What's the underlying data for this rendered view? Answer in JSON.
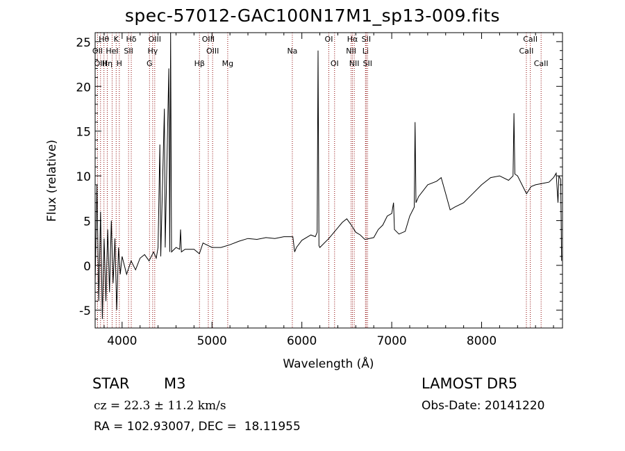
{
  "title": "spec-57012-GAC100N17M1_sp13-009.fits",
  "info": {
    "object_class": "STAR",
    "subclass": "M3",
    "survey": "LAMOST DR5",
    "cz": "cz = 22.3 ± 11.2 km/s",
    "obs_date": "Obs-Date: 20141220",
    "coords": "RA = 102.93007, DEC =  18.11955"
  },
  "colors": {
    "spectrum": "#000000",
    "line_markers": "#8b0000",
    "axes": "#000000"
  },
  "chart_data": {
    "type": "line",
    "title": "spec-57012-GAC100N17M1_sp13-009.fits",
    "xlabel": "Wavelength (Å)",
    "ylabel": "Flux (relative)",
    "xlim": [
      3700,
      8900
    ],
    "ylim": [
      -7,
      26
    ],
    "x_ticks": [
      4000,
      5000,
      6000,
      7000,
      8000
    ],
    "y_ticks": [
      -5,
      0,
      5,
      10,
      15,
      20,
      25
    ],
    "grid": false,
    "series": [
      {
        "points": [
          [
            3700,
            -2
          ],
          [
            3720,
            9
          ],
          [
            3740,
            -4
          ],
          [
            3760,
            6
          ],
          [
            3780,
            -6
          ],
          [
            3800,
            3
          ],
          [
            3820,
            -4
          ],
          [
            3840,
            4
          ],
          [
            3860,
            -3
          ],
          [
            3880,
            5
          ],
          [
            3900,
            -2
          ],
          [
            3920,
            3
          ],
          [
            3940,
            -5
          ],
          [
            3960,
            2
          ],
          [
            3980,
            -1
          ],
          [
            4000,
            1
          ],
          [
            4050,
            -1
          ],
          [
            4100,
            0.5
          ],
          [
            4150,
            -0.5
          ],
          [
            4200,
            0.8
          ],
          [
            4250,
            1.2
          ],
          [
            4300,
            0.5
          ],
          [
            4350,
            1.5
          ],
          [
            4380,
            0.8
          ],
          [
            4400,
            2
          ],
          [
            4420,
            13.5
          ],
          [
            4430,
            1
          ],
          [
            4470,
            17.5
          ],
          [
            4480,
            2
          ],
          [
            4520,
            22
          ],
          [
            4530,
            1.5
          ],
          [
            4540,
            26
          ],
          [
            4550,
            1.5
          ],
          [
            4600,
            2
          ],
          [
            4640,
            1.8
          ],
          [
            4650,
            4
          ],
          [
            4660,
            1.5
          ],
          [
            4700,
            1.8
          ],
          [
            4800,
            1.8
          ],
          [
            4860,
            1.3
          ],
          [
            4900,
            2.5
          ],
          [
            5000,
            2
          ],
          [
            5100,
            2
          ],
          [
            5200,
            2.3
          ],
          [
            5300,
            2.7
          ],
          [
            5400,
            3
          ],
          [
            5500,
            2.9
          ],
          [
            5600,
            3.1
          ],
          [
            5700,
            3
          ],
          [
            5800,
            3.2
          ],
          [
            5900,
            3.2
          ],
          [
            5920,
            1.5
          ],
          [
            5940,
            2
          ],
          [
            6000,
            2.8
          ],
          [
            6100,
            3.4
          ],
          [
            6150,
            3.2
          ],
          [
            6170,
            3.7
          ],
          [
            6180,
            24
          ],
          [
            6190,
            2.2
          ],
          [
            6200,
            2
          ],
          [
            6300,
            3
          ],
          [
            6400,
            4.2
          ],
          [
            6450,
            4.8
          ],
          [
            6500,
            5.2
          ],
          [
            6550,
            4.5
          ],
          [
            6600,
            3.7
          ],
          [
            6650,
            3.4
          ],
          [
            6700,
            2.9
          ],
          [
            6750,
            3
          ],
          [
            6800,
            3.1
          ],
          [
            6850,
            4
          ],
          [
            6900,
            4.5
          ],
          [
            6950,
            5.5
          ],
          [
            7000,
            5.8
          ],
          [
            7020,
            7
          ],
          [
            7030,
            4
          ],
          [
            7080,
            3.5
          ],
          [
            7150,
            3.8
          ],
          [
            7200,
            5.5
          ],
          [
            7250,
            6.5
          ],
          [
            7260,
            16
          ],
          [
            7270,
            7
          ],
          [
            7300,
            7.7
          ],
          [
            7400,
            9
          ],
          [
            7500,
            9.4
          ],
          [
            7550,
            9.8
          ],
          [
            7600,
            8
          ],
          [
            7650,
            6.2
          ],
          [
            7700,
            6.5
          ],
          [
            7800,
            7
          ],
          [
            7900,
            8
          ],
          [
            8000,
            9
          ],
          [
            8100,
            9.8
          ],
          [
            8200,
            10
          ],
          [
            8300,
            9.5
          ],
          [
            8350,
            10
          ],
          [
            8360,
            17
          ],
          [
            8370,
            10.2
          ],
          [
            8400,
            10
          ],
          [
            8500,
            8
          ],
          [
            8550,
            8.8
          ],
          [
            8600,
            9
          ],
          [
            8700,
            9.2
          ],
          [
            8750,
            9.3
          ],
          [
            8800,
            9.8
          ],
          [
            8830,
            10.3
          ],
          [
            8850,
            7
          ],
          [
            8860,
            10
          ],
          [
            8880,
            9.6
          ],
          [
            8890,
            0.5
          ]
        ]
      }
    ],
    "line_markers": [
      {
        "label": "Hθ",
        "wavelength": 3798,
        "row": 0
      },
      {
        "label": "OII",
        "wavelength": 3727,
        "row": 1
      },
      {
        "label": "OIII",
        "wavelength": 3760,
        "row": 2
      },
      {
        "label": "Hη",
        "wavelength": 3835,
        "row": 2
      },
      {
        "label": "HeI",
        "wavelength": 3889,
        "row": 1
      },
      {
        "label": "K",
        "wavelength": 3934,
        "row": 0
      },
      {
        "label": "H",
        "wavelength": 3969,
        "row": 2
      },
      {
        "label": "Hδ",
        "wavelength": 4102,
        "row": 0
      },
      {
        "label": "SII",
        "wavelength": 4072,
        "row": 1
      },
      {
        "label": "OIII",
        "wavelength": 4363,
        "row": 0
      },
      {
        "label": "Hγ",
        "wavelength": 4340,
        "row": 1
      },
      {
        "label": "G",
        "wavelength": 4305,
        "row": 2
      },
      {
        "label": "OIII",
        "wavelength": 4959,
        "row": 0
      },
      {
        "label": "OIII",
        "wavelength": 5007,
        "row": 1
      },
      {
        "label": "Hβ",
        "wavelength": 4861,
        "row": 2
      },
      {
        "label": "Mg",
        "wavelength": 5175,
        "row": 2
      },
      {
        "label": "Na",
        "wavelength": 5894,
        "row": 1
      },
      {
        "label": "OI",
        "wavelength": 6300,
        "row": 0
      },
      {
        "label": "OI",
        "wavelength": 6364,
        "row": 2
      },
      {
        "label": "Hα",
        "wavelength": 6563,
        "row": 0
      },
      {
        "label": "NII",
        "wavelength": 6548,
        "row": 1
      },
      {
        "label": "NII",
        "wavelength": 6583,
        "row": 2
      },
      {
        "label": "SII",
        "wavelength": 6716,
        "row": 0
      },
      {
        "label": "Li",
        "wavelength": 6708,
        "row": 1
      },
      {
        "label": "SII",
        "wavelength": 6731,
        "row": 2
      },
      {
        "label": "CaII",
        "wavelength": 8542,
        "row": 0
      },
      {
        "label": "CaII",
        "wavelength": 8498,
        "row": 1
      },
      {
        "label": "CaII",
        "wavelength": 8662,
        "row": 2
      }
    ]
  }
}
